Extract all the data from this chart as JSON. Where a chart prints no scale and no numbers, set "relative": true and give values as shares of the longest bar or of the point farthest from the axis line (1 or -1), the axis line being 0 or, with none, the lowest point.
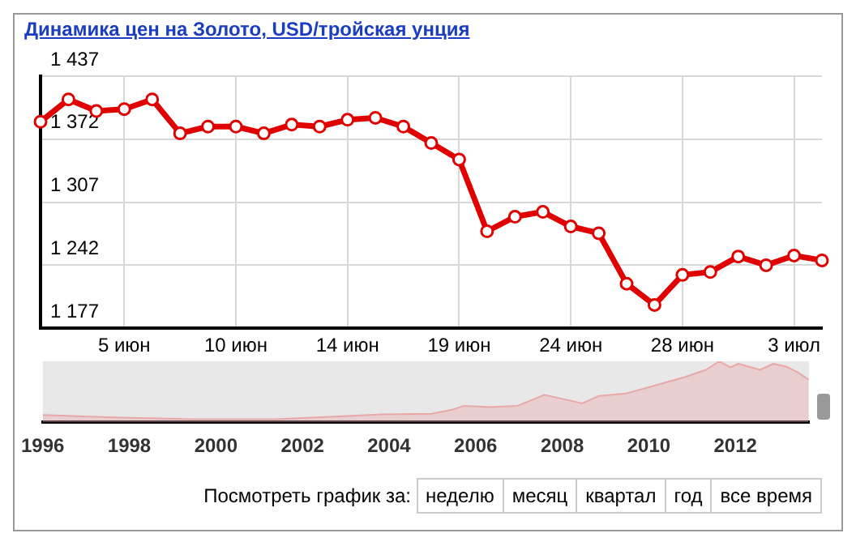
{
  "chart_data": [
    {
      "type": "line",
      "title": "Динамика цен на Золото, USD/тройская унция",
      "categories": [
        null,
        null,
        null,
        "5 июн",
        null,
        null,
        null,
        "10 июн",
        null,
        null,
        null,
        "14 июн",
        null,
        null,
        null,
        "19 июн",
        null,
        null,
        null,
        "24 июн",
        null,
        null,
        null,
        "28 июн",
        null,
        null,
        null,
        "3 июл",
        null
      ],
      "series": [
        {
          "color": "#e00000",
          "values": [
            1390,
            1413,
            1401,
            1403,
            1413,
            1378,
            1385,
            1385,
            1378,
            1387,
            1385,
            1392,
            1394,
            1385,
            1368,
            1351,
            1277,
            1292,
            1297,
            1282,
            1275,
            1223,
            1201,
            1232,
            1235,
            1251,
            1242,
            1252,
            1247
          ]
        }
      ],
      "ylim": [
        1177,
        1437
      ],
      "yticks": [
        {
          "value": 1177,
          "label": "1 177"
        },
        {
          "value": 1242,
          "label": "1 242"
        },
        {
          "value": 1307,
          "label": "1 307"
        },
        {
          "value": 1372,
          "label": "1 372"
        },
        {
          "value": 1437,
          "label": "1 437"
        }
      ],
      "grid": true,
      "marker": "circle",
      "line_style": "solid"
    },
    {
      "type": "area",
      "relative": true,
      "x": [
        1996.0,
        1997.64,
        1999.5,
        2001.37,
        2002.62,
        2003.86,
        2004.98,
        2005.48,
        2005.73,
        2006.35,
        2006.97,
        2007.59,
        2008.09,
        2008.46,
        2008.84,
        2009.46,
        2010.08,
        2010.83,
        2011.32,
        2011.63,
        2011.88,
        2012.07,
        2012.57,
        2012.88,
        2013.19,
        2013.44,
        2013.69
      ],
      "series": [
        {
          "color": "#e8a8a8",
          "values": [
            0.12,
            0.08,
            0.05,
            0.05,
            0.09,
            0.13,
            0.14,
            0.21,
            0.27,
            0.25,
            0.27,
            0.45,
            0.37,
            0.31,
            0.43,
            0.47,
            0.59,
            0.74,
            0.86,
            1,
            0.9,
            0.96,
            0.86,
            0.96,
            0.91,
            0.82,
            0.7
          ]
        }
      ],
      "xlim": [
        1996,
        2013.7
      ],
      "xticks": [
        1996,
        1998,
        2000,
        2002,
        2004,
        2006,
        2008,
        2010,
        2012
      ],
      "annotations": [
        "Посмотреть график за:",
        "неделю",
        "месяц",
        "квартал",
        "год",
        "все время"
      ]
    }
  ]
}
